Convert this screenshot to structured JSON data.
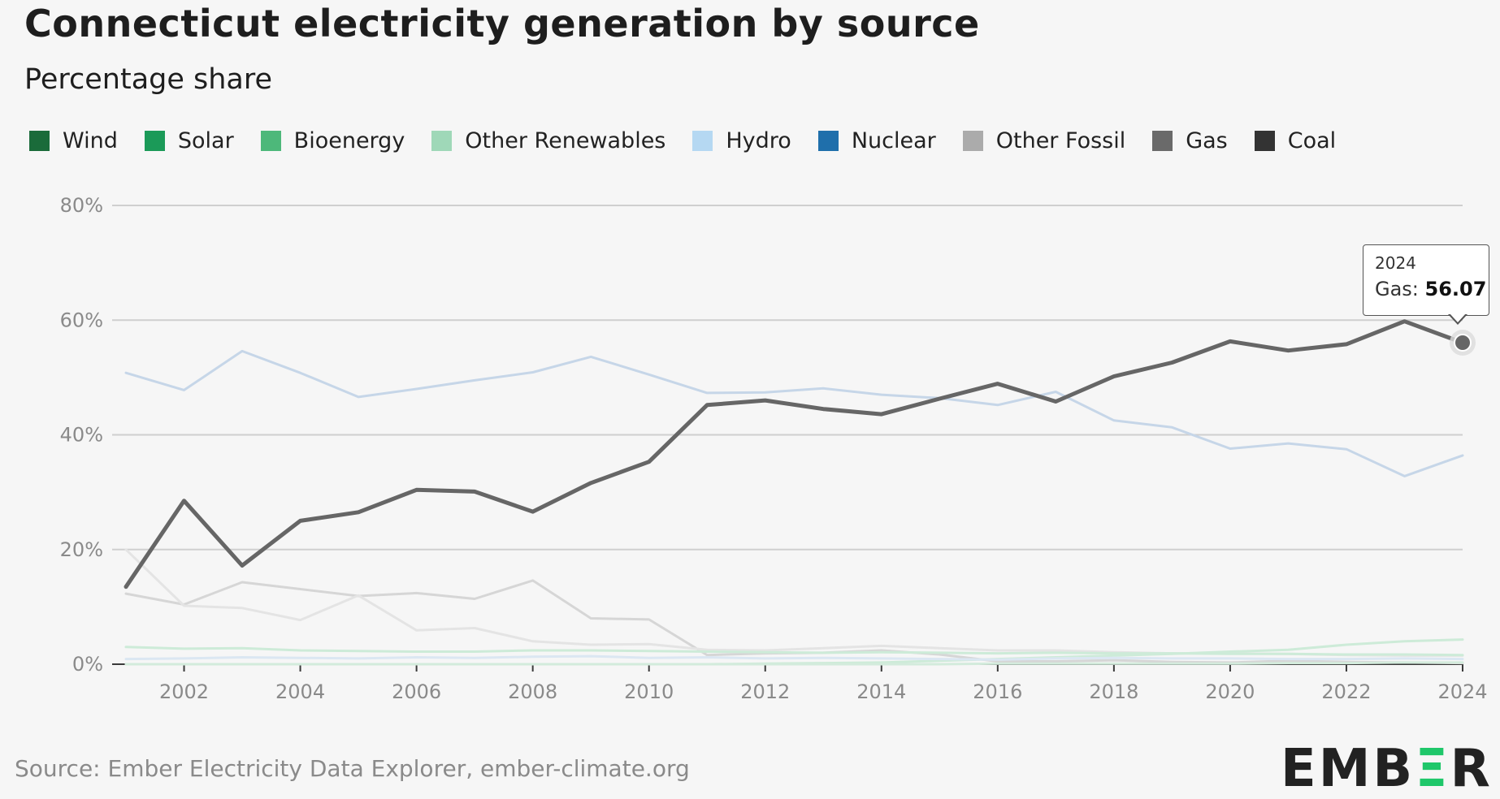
{
  "title": "Connecticut electricity generation by source",
  "subtitle": "Percentage share",
  "source": "Source: Ember Electricity Data Explorer, ember-climate.org",
  "logo": {
    "part1": "EMB",
    "accent": "Ξ",
    "part2": "R"
  },
  "legend": [
    {
      "label": "Wind",
      "color": "#1a6b3a"
    },
    {
      "label": "Solar",
      "color": "#1b9a58"
    },
    {
      "label": "Bioenergy",
      "color": "#4db87a"
    },
    {
      "label": "Other Renewables",
      "color": "#9fd8b8"
    },
    {
      "label": "Hydro",
      "color": "#b5d8f2"
    },
    {
      "label": "Nuclear",
      "color": "#1f6fab"
    },
    {
      "label": "Other Fossil",
      "color": "#ababab"
    },
    {
      "label": "Gas",
      "color": "#6a6a6a"
    },
    {
      "label": "Coal",
      "color": "#333333"
    }
  ],
  "tooltip": {
    "year": "2024",
    "label": "Gas: ",
    "value": "56.07"
  },
  "chart_data": {
    "type": "line",
    "title": "Connecticut electricity generation by source",
    "subtitle": "Percentage share",
    "x": [
      2001,
      2002,
      2003,
      2004,
      2005,
      2006,
      2007,
      2008,
      2009,
      2010,
      2011,
      2012,
      2013,
      2014,
      2015,
      2016,
      2017,
      2018,
      2019,
      2020,
      2021,
      2022,
      2023,
      2024
    ],
    "xticks": [
      2002,
      2004,
      2006,
      2008,
      2010,
      2012,
      2014,
      2016,
      2018,
      2020,
      2022,
      2024
    ],
    "yticks": [
      0,
      20,
      40,
      60,
      80
    ],
    "ytick_format": "%",
    "ylim": [
      0,
      80
    ],
    "grid": true,
    "series": [
      {
        "name": "Gas",
        "color": "#666666",
        "width": 5,
        "opacity": 1,
        "values": [
          13.5,
          28.5,
          17.2,
          25.0,
          26.5,
          30.4,
          30.1,
          26.6,
          31.6,
          35.3,
          45.2,
          46.0,
          44.5,
          43.6,
          46.3,
          48.9,
          45.8,
          50.2,
          52.6,
          56.3,
          54.7,
          55.8,
          59.8,
          56.07
        ]
      },
      {
        "name": "Nuclear",
        "color": "#c6d6e8",
        "width": 3,
        "opacity": 1,
        "values": [
          50.8,
          47.8,
          54.6,
          50.8,
          46.6,
          48.0,
          49.5,
          50.9,
          53.6,
          50.5,
          47.3,
          47.4,
          48.1,
          47.0,
          46.4,
          45.2,
          47.5,
          42.5,
          41.3,
          37.6,
          38.5,
          37.5,
          32.8,
          36.4
        ]
      },
      {
        "name": "Coal",
        "color": "#d6d6d6",
        "width": 3,
        "opacity": 1,
        "values": [
          12.3,
          10.4,
          14.3,
          13.1,
          11.9,
          12.4,
          11.4,
          14.6,
          8.0,
          7.8,
          1.6,
          1.9,
          2.0,
          2.4,
          1.7,
          0.5,
          0.5,
          0.7,
          0.4,
          0.3,
          0.6,
          0.4,
          0.3,
          0.2
        ]
      },
      {
        "name": "Other Fossil",
        "color": "#e4e4e4",
        "width": 3,
        "opacity": 1,
        "values": [
          20.0,
          10.2,
          9.8,
          7.7,
          12.0,
          5.9,
          6.3,
          4.0,
          3.4,
          3.5,
          2.5,
          2.4,
          2.8,
          3.2,
          2.8,
          2.4,
          2.4,
          2.1,
          1.9,
          1.9,
          1.8,
          1.6,
          1.5,
          1.5
        ]
      },
      {
        "name": "Bioenergy",
        "color": "#cdebd8",
        "width": 3,
        "opacity": 1,
        "values": [
          3.0,
          2.7,
          2.8,
          2.4,
          2.3,
          2.2,
          2.2,
          2.4,
          2.4,
          2.3,
          2.2,
          2.1,
          2.0,
          2.1,
          2.0,
          1.9,
          2.0,
          1.9,
          1.9,
          1.8,
          1.8,
          1.7,
          1.7,
          1.6
        ]
      },
      {
        "name": "Solar",
        "color": "#cdebd8",
        "width": 3,
        "opacity": 1,
        "values": [
          0,
          0,
          0,
          0,
          0,
          0,
          0,
          0,
          0,
          0,
          0,
          0.1,
          0.2,
          0.3,
          0.6,
          0.9,
          1.2,
          1.5,
          1.8,
          2.2,
          2.5,
          3.4,
          4.0,
          4.3
        ]
      },
      {
        "name": "Hydro",
        "color": "#dbe7f2",
        "width": 3,
        "opacity": 1,
        "values": [
          0.9,
          1.0,
          1.2,
          1.1,
          1.0,
          1.2,
          1.1,
          1.3,
          1.4,
          1.1,
          1.2,
          1.0,
          1.1,
          1.0,
          0.9,
          0.8,
          1.0,
          1.1,
          1.0,
          1.0,
          0.9,
          0.9,
          1.0,
          0.9
        ]
      },
      {
        "name": "Wind",
        "color": "#d3ebdc",
        "width": 3,
        "opacity": 1,
        "values": [
          0,
          0,
          0,
          0,
          0,
          0,
          0,
          0,
          0,
          0,
          0,
          0,
          0,
          0,
          0,
          0.1,
          0.1,
          0.1,
          0.1,
          0.1,
          0.2,
          0.2,
          0.3,
          0.3
        ]
      }
    ]
  }
}
